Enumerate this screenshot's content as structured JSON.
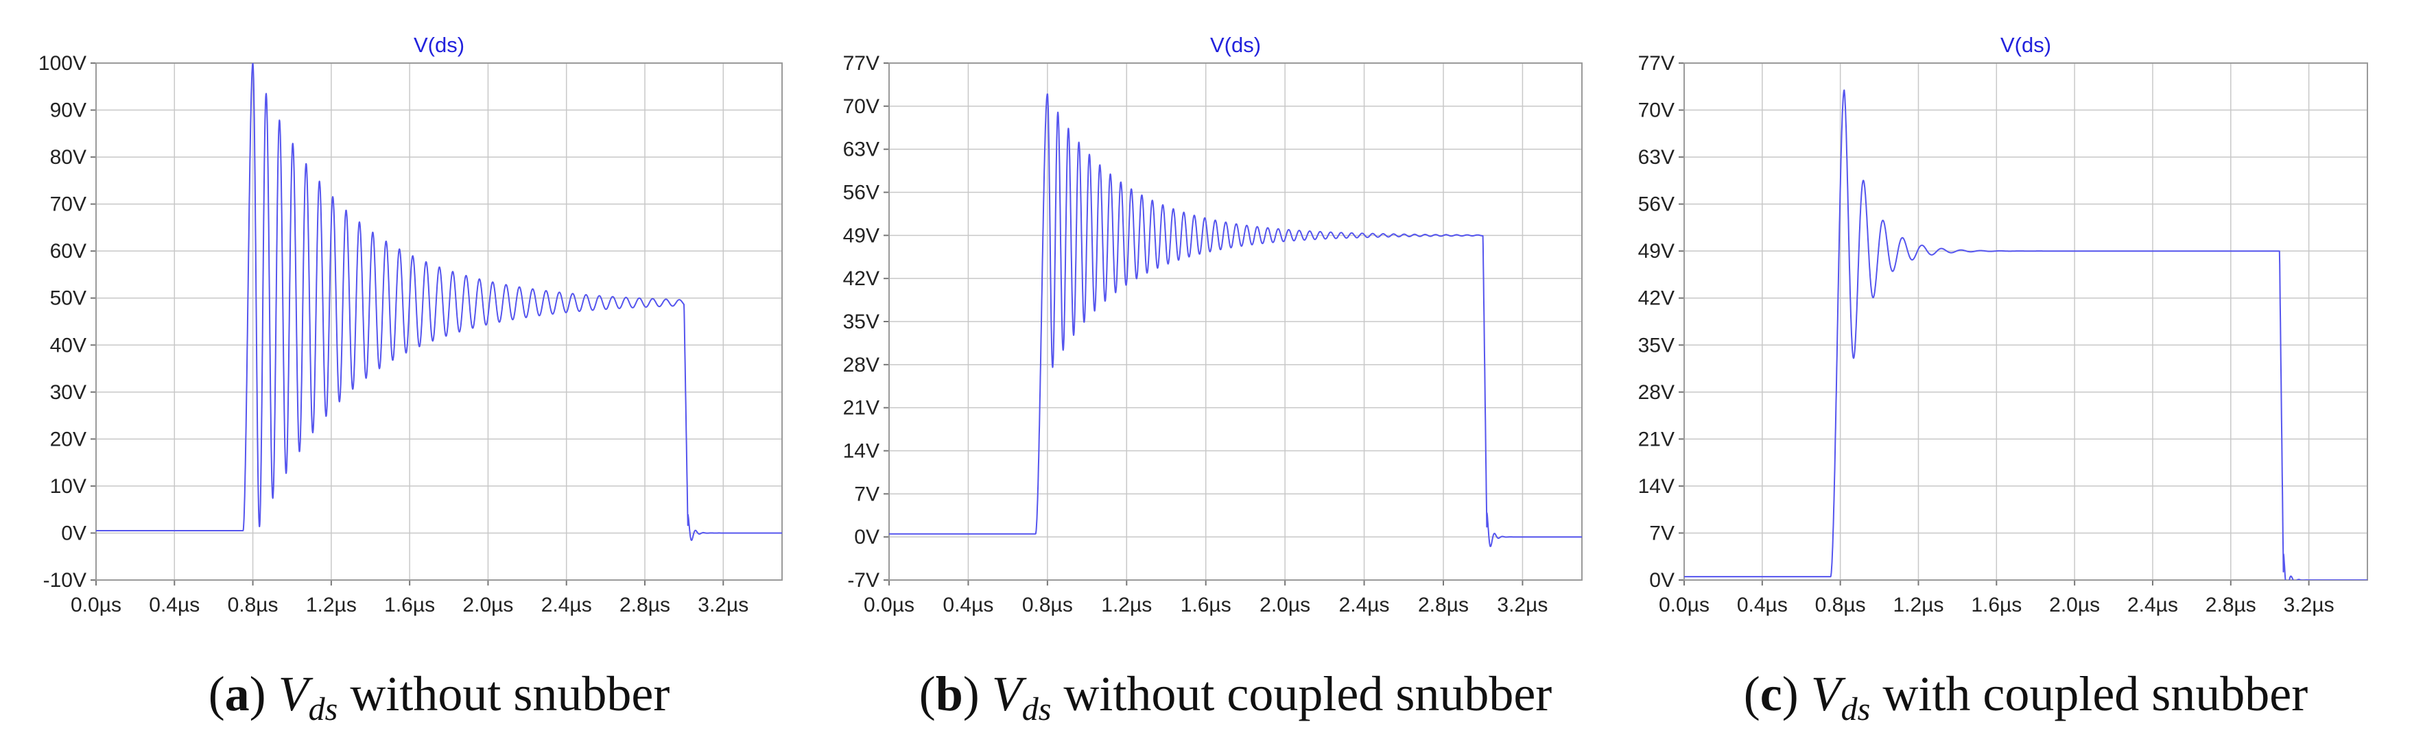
{
  "chart_data": [
    {
      "type": "line",
      "title": "V(ds)",
      "caption": {
        "letter": "a",
        "var": "V",
        "sub": "ds",
        "text": "without snubber"
      },
      "xlim": [
        0,
        3.5
      ],
      "ylim": [
        -10,
        100
      ],
      "xticks": [
        0,
        0.4,
        0.8,
        1.2,
        1.6,
        2.0,
        2.4,
        2.8,
        3.2
      ],
      "xtick_labels": [
        "0.0µs",
        "0.4µs",
        "0.8µs",
        "1.2µs",
        "1.6µs",
        "2.0µs",
        "2.4µs",
        "2.8µs",
        "3.2µs"
      ],
      "yticks": [
        -10,
        0,
        10,
        20,
        30,
        40,
        50,
        60,
        70,
        80,
        90,
        100
      ],
      "ytick_labels": [
        "-10V",
        "0V",
        "10V",
        "20V",
        "30V",
        "40V",
        "50V",
        "60V",
        "70V",
        "80V",
        "90V",
        "100V"
      ],
      "series": [
        {
          "name": "V(ds)",
          "color": "#5555ee",
          "params": {
            "t_rise_start": 0.75,
            "t_rise_end": 0.8,
            "v_low": 0.5,
            "v_final": 49,
            "peak_amp": 51,
            "period": 0.068,
            "tau": 0.5,
            "t_fall": 3.0,
            "v_end": 0
          }
        }
      ]
    },
    {
      "type": "line",
      "title": "V(ds)",
      "caption": {
        "letter": "b",
        "var": "V",
        "sub": "ds",
        "text": "without coupled snubber"
      },
      "xlim": [
        0,
        3.5
      ],
      "ylim": [
        -7,
        77
      ],
      "xticks": [
        0,
        0.4,
        0.8,
        1.2,
        1.6,
        2.0,
        2.4,
        2.8,
        3.2
      ],
      "xtick_labels": [
        "0.0µs",
        "0.4µs",
        "0.8µs",
        "1.2µs",
        "1.6µs",
        "2.0µs",
        "2.4µs",
        "2.8µs",
        "3.2µs"
      ],
      "yticks": [
        -7,
        0,
        7,
        14,
        21,
        28,
        35,
        42,
        49,
        56,
        63,
        70,
        77
      ],
      "ytick_labels": [
        "-7V",
        "0V",
        "7V",
        "14V",
        "21V",
        "28V",
        "35V",
        "42V",
        "49V",
        "56V",
        "63V",
        "70V",
        "77V"
      ],
      "series": [
        {
          "name": "V(ds)",
          "color": "#5555ee",
          "params": {
            "t_rise_start": 0.74,
            "t_rise_end": 0.8,
            "v_low": 0.5,
            "v_final": 49,
            "peak_amp": 23,
            "period": 0.053,
            "tau": 0.38,
            "t_fall": 3.0,
            "v_end": 0
          }
        }
      ]
    },
    {
      "type": "line",
      "title": "V(ds)",
      "caption": {
        "letter": "c",
        "var": "V",
        "sub": "ds",
        "text": "with coupled snubber"
      },
      "xlim": [
        0,
        3.5
      ],
      "ylim": [
        0,
        77
      ],
      "xticks": [
        0,
        0.4,
        0.8,
        1.2,
        1.6,
        2.0,
        2.4,
        2.8,
        3.2
      ],
      "xtick_labels": [
        "0.0µs",
        "0.4µs",
        "0.8µs",
        "1.2µs",
        "1.6µs",
        "2.0µs",
        "2.4µs",
        "2.8µs",
        "3.2µs"
      ],
      "yticks": [
        0,
        7,
        14,
        21,
        28,
        35,
        42,
        49,
        56,
        63,
        70,
        77
      ],
      "ytick_labels": [
        "0V",
        "7V",
        "14V",
        "21V",
        "28V",
        "35V",
        "42V",
        "49V",
        "56V",
        "63V",
        "70V",
        "77V"
      ],
      "series": [
        {
          "name": "V(ds)",
          "color": "#5555ee",
          "params": {
            "t_rise_start": 0.75,
            "t_rise_end": 0.82,
            "v_low": 0.5,
            "v_final": 49,
            "peak_amp": 24,
            "period": 0.1,
            "tau": 0.12,
            "t_fall": 3.05,
            "v_end": 0
          }
        }
      ]
    }
  ]
}
